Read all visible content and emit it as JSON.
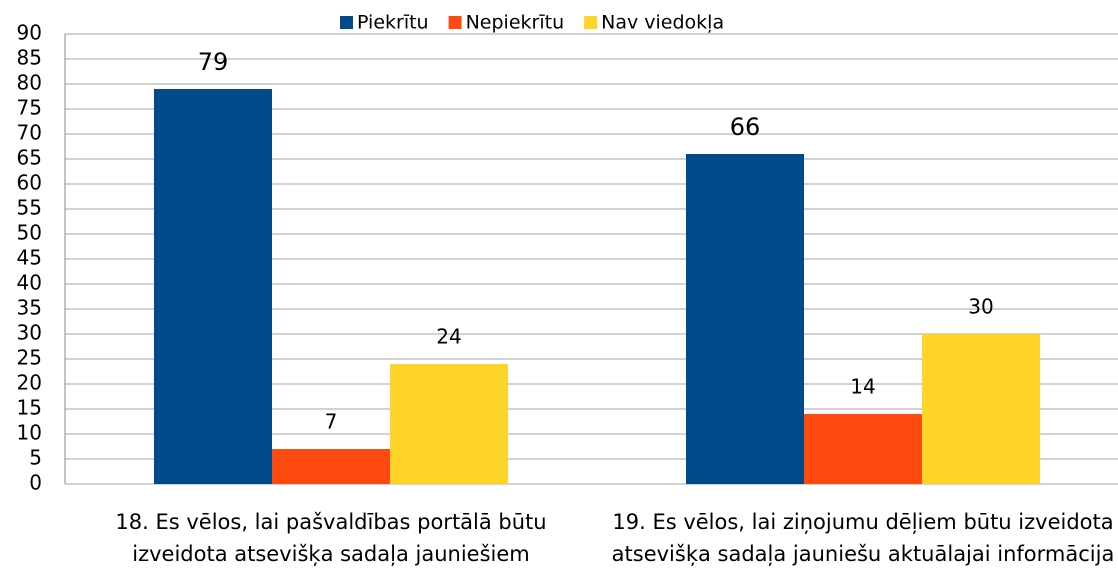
{
  "chart_data": {
    "type": "bar",
    "categories": [
      "18. Es vēlos, lai pašvaldības portālā būtu\nizveidota atsevišķa sadaļa jauniešiem",
      "19. Es vēlos, lai ziņojumu dēļiem būtu izveidota\natsevišķa sadaļa jauniešu aktuālajai informācija"
    ],
    "series": [
      {
        "name": "Piekrītu",
        "color": "#004a8c",
        "values": [
          79,
          66
        ]
      },
      {
        "name": "Nepiekrītu",
        "color": "#ff4a12",
        "values": [
          7,
          14
        ]
      },
      {
        "name": "Nav viedokļa",
        "color": "#ffd42a",
        "values": [
          24,
          30
        ]
      }
    ],
    "ylim": [
      0,
      90
    ],
    "yticks": [
      0,
      5,
      10,
      15,
      20,
      25,
      30,
      35,
      40,
      45,
      50,
      55,
      60,
      65,
      70,
      75,
      80,
      85,
      90
    ],
    "grid": true,
    "legend": "top"
  }
}
